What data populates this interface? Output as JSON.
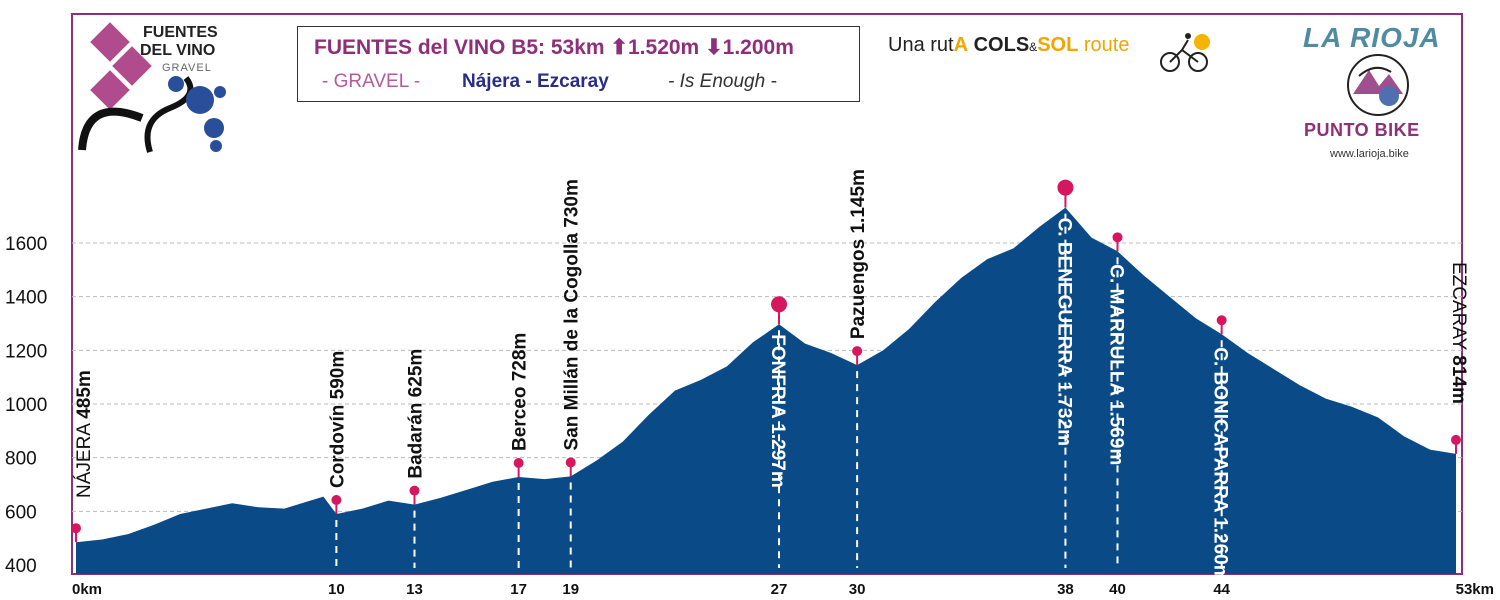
{
  "header": {
    "title": "FUENTES del VINO B5: 53km ⬆1.520m ⬇1.200m",
    "gravel": "- GRAVEL -",
    "route": "Nájera - Ezcaray",
    "motto": "- Is Enough -"
  },
  "logo": {
    "line1": "FUENTES",
    "line2": "DEL VINO",
    "line3": "GRAVEL"
  },
  "cols_sol": {
    "prefix": "Una rut",
    "a": "A",
    "cols": "COLS",
    "amp": "&",
    "sol": "SOL",
    "suffix": " route"
  },
  "rioja": {
    "title": "LA RIOJA",
    "subtitle": "PUNTO BIKE",
    "url": "www.larioja.bike"
  },
  "colors": {
    "fill": "#0a4a87",
    "frame": "#8e2f7a",
    "marker": "#d6165f",
    "grid": "#bbbbbb"
  },
  "chart_data": {
    "type": "area",
    "x_unit": "km",
    "xlim": [
      0,
      53
    ],
    "ylim": [
      400,
      1800
    ],
    "y_ticks": [
      400,
      600,
      800,
      1000,
      1200,
      1400,
      1600
    ],
    "x_ticks": [
      0,
      10,
      13,
      17,
      19,
      27,
      30,
      38,
      40,
      44,
      53
    ],
    "x_tick_labels": [
      "0km",
      "10",
      "13",
      "17",
      "19",
      "27",
      "30",
      "38",
      "40",
      "44",
      "53km"
    ],
    "grid": true,
    "profile": [
      [
        0,
        485
      ],
      [
        1,
        495
      ],
      [
        2,
        515
      ],
      [
        3,
        550
      ],
      [
        4,
        590
      ],
      [
        5,
        610
      ],
      [
        6,
        630
      ],
      [
        7,
        615
      ],
      [
        8,
        610
      ],
      [
        9,
        640
      ],
      [
        9.5,
        655
      ],
      [
        10,
        590
      ],
      [
        11,
        610
      ],
      [
        12,
        640
      ],
      [
        13,
        625
      ],
      [
        14,
        650
      ],
      [
        15,
        680
      ],
      [
        16,
        710
      ],
      [
        17,
        728
      ],
      [
        18,
        720
      ],
      [
        19,
        730
      ],
      [
        20,
        790
      ],
      [
        21,
        860
      ],
      [
        22,
        960
      ],
      [
        23,
        1050
      ],
      [
        24,
        1090
      ],
      [
        25,
        1140
      ],
      [
        26,
        1230
      ],
      [
        27,
        1297
      ],
      [
        28,
        1225
      ],
      [
        29,
        1190
      ],
      [
        30,
        1145
      ],
      [
        31,
        1200
      ],
      [
        32,
        1280
      ],
      [
        33,
        1380
      ],
      [
        34,
        1470
      ],
      [
        35,
        1540
      ],
      [
        36,
        1580
      ],
      [
        37,
        1660
      ],
      [
        38,
        1732
      ],
      [
        39,
        1620
      ],
      [
        40,
        1569
      ],
      [
        41,
        1480
      ],
      [
        42,
        1400
      ],
      [
        43,
        1320
      ],
      [
        44,
        1260
      ],
      [
        45,
        1190
      ],
      [
        46,
        1130
      ],
      [
        47,
        1070
      ],
      [
        48,
        1020
      ],
      [
        49,
        990
      ],
      [
        50,
        950
      ],
      [
        51,
        880
      ],
      [
        52,
        830
      ],
      [
        53,
        814
      ]
    ],
    "waypoints": [
      {
        "km": 0,
        "elev": 485,
        "name": "NÁJERA",
        "value": "485m"
      },
      {
        "km": 10,
        "elev": 590,
        "name": "Cordovín",
        "value": "590m"
      },
      {
        "km": 13,
        "elev": 625,
        "name": "Badarán",
        "value": "625m"
      },
      {
        "km": 17,
        "elev": 728,
        "name": "Berceo",
        "value": "728m"
      },
      {
        "km": 19,
        "elev": 730,
        "name": "San Millán de la Cogolla",
        "value": "730m"
      },
      {
        "km": 27,
        "elev": 1297,
        "name": "FONFRIA",
        "value": "1.297m"
      },
      {
        "km": 30,
        "elev": 1145,
        "name": "Pazuengos",
        "value": "1.145m"
      },
      {
        "km": 38,
        "elev": 1732,
        "name": "C. BENEGUERRA",
        "value": "1.732m"
      },
      {
        "km": 40,
        "elev": 1569,
        "name": "C. MARRULLA",
        "value": "1.569m"
      },
      {
        "km": 44,
        "elev": 1260,
        "name": "C. BONICAPARRA",
        "value": "1.260m"
      },
      {
        "km": 53,
        "elev": 814,
        "name": "EZCARAY",
        "value": "814m"
      }
    ]
  }
}
